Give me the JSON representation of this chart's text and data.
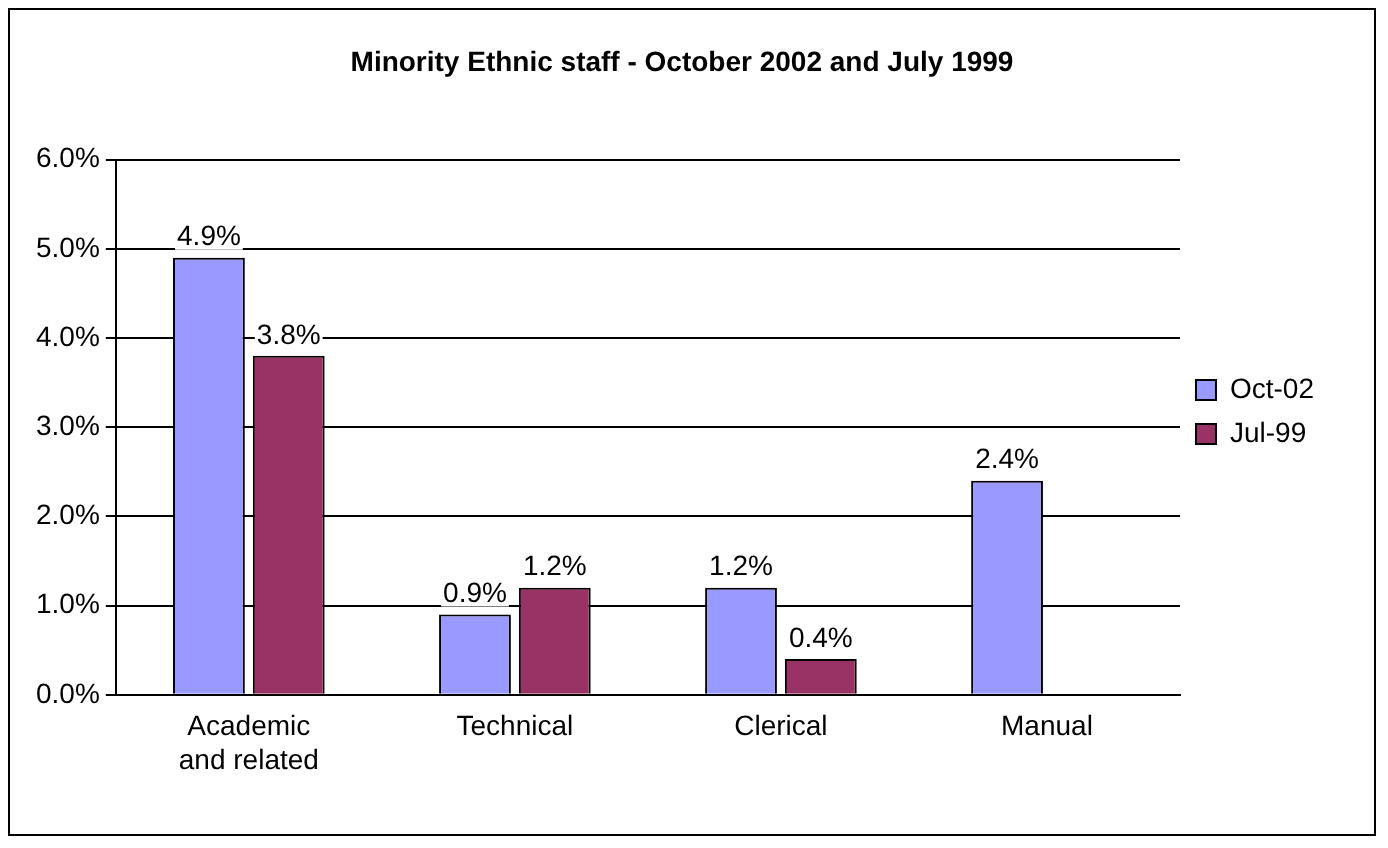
{
  "chart_data": {
    "type": "bar",
    "title": "Minority Ethnic staff - October 2002 and July 1999",
    "categories": [
      "Academic and related",
      "Technical",
      "Clerical",
      "Manual"
    ],
    "series": [
      {
        "name": "Oct-02",
        "color": "#9999ff",
        "values": [
          4.9,
          0.9,
          1.2,
          2.4
        ],
        "value_labels": [
          "4.9%",
          "0.9%",
          "1.2%",
          "2.4%"
        ]
      },
      {
        "name": "Jul-99",
        "color": "#993366",
        "values": [
          3.8,
          1.2,
          0.4,
          null
        ],
        "value_labels": [
          "3.8%",
          "1.2%",
          "0.4%",
          null
        ]
      }
    ],
    "ylim": [
      0,
      6
    ],
    "yticks": [
      {
        "value": 0,
        "label": "0.0%"
      },
      {
        "value": 1,
        "label": "1.0%"
      },
      {
        "value": 2,
        "label": "2.0%"
      },
      {
        "value": 3,
        "label": "3.0%"
      },
      {
        "value": 4,
        "label": "4.0%"
      },
      {
        "value": 5,
        "label": "5.0%"
      },
      {
        "value": 6,
        "label": "6.0%"
      }
    ],
    "grid": "y",
    "legend": "right"
  }
}
